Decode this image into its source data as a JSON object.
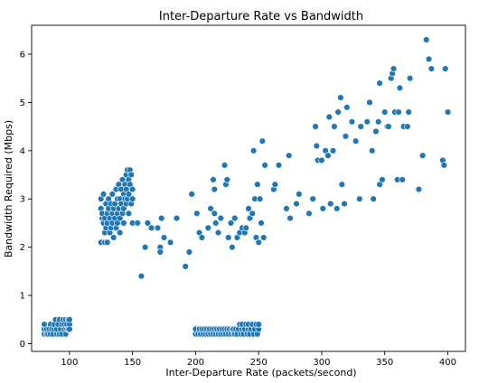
{
  "chart_data": {
    "type": "scatter",
    "title": "Inter-Departure Rate vs Bandwidth",
    "xlabel": "Inter-Departure Rate (packets/second)",
    "ylabel": "Bandwidth Required (Mbps)",
    "xlim": [
      70,
      414
    ],
    "ylim": [
      -0.16,
      6.6
    ],
    "xticks": [
      100,
      150,
      200,
      250,
      300,
      350,
      400
    ],
    "yticks": [
      0,
      1,
      2,
      3,
      4,
      5,
      6
    ],
    "grid": false,
    "legend": "none",
    "marker_color": "#1f77b4",
    "series": [
      {
        "points": [
          [
            80,
            0.2
          ],
          [
            80,
            0.3
          ],
          [
            80,
            0.4
          ],
          [
            82,
            0.2
          ],
          [
            82,
            0.3
          ],
          [
            83,
            0.2
          ],
          [
            84,
            0.3
          ],
          [
            85,
            0.2
          ],
          [
            85,
            0.4
          ],
          [
            86,
            0.3
          ],
          [
            87,
            0.2
          ],
          [
            88,
            0.3
          ],
          [
            88,
            0.4
          ],
          [
            89,
            0.5
          ],
          [
            90,
            0.2
          ],
          [
            90,
            0.3
          ],
          [
            91,
            0.4
          ],
          [
            92,
            0.2
          ],
          [
            92,
            0.5
          ],
          [
            93,
            0.3
          ],
          [
            94,
            0.4
          ],
          [
            94,
            0.2
          ],
          [
            95,
            0.5
          ],
          [
            96,
            0.3
          ],
          [
            96,
            0.4
          ],
          [
            97,
            0.2
          ],
          [
            97,
            0.5
          ],
          [
            98,
            0.3
          ],
          [
            98,
            0.4
          ],
          [
            99,
            0.3
          ],
          [
            99,
            0.5
          ],
          [
            100,
            0.4
          ],
          [
            100,
            0.3
          ],
          [
            100,
            0.5
          ],
          [
            125,
            2.1
          ],
          [
            125,
            2.8
          ],
          [
            125,
            3.0
          ],
          [
            126,
            2.6
          ],
          [
            126,
            2.7
          ],
          [
            127,
            2.5
          ],
          [
            127,
            3.1
          ],
          [
            128,
            2.1
          ],
          [
            128,
            2.3
          ],
          [
            128,
            2.6
          ],
          [
            129,
            2.4
          ],
          [
            129,
            2.9
          ],
          [
            130,
            2.5
          ],
          [
            130,
            2.7
          ],
          [
            130,
            2.1
          ],
          [
            131,
            2.8
          ],
          [
            131,
            3.0
          ],
          [
            132,
            2.6
          ],
          [
            132,
            2.3
          ],
          [
            133,
            2.4
          ],
          [
            133,
            2.9
          ],
          [
            134,
            2.5
          ],
          [
            134,
            2.7
          ],
          [
            134,
            3.1
          ],
          [
            135,
            2.2
          ],
          [
            135,
            2.8
          ],
          [
            136,
            2.6
          ],
          [
            136,
            2.9
          ],
          [
            137,
            2.4
          ],
          [
            137,
            3.2
          ],
          [
            138,
            2.7
          ],
          [
            138,
            3.0
          ],
          [
            138,
            2.5
          ],
          [
            139,
            2.8
          ],
          [
            139,
            3.3
          ],
          [
            140,
            2.6
          ],
          [
            140,
            3.0
          ],
          [
            140,
            2.3
          ],
          [
            141,
            2.9
          ],
          [
            141,
            3.2
          ],
          [
            142,
            2.7
          ],
          [
            142,
            3.4
          ],
          [
            143,
            2.8
          ],
          [
            143,
            3.1
          ],
          [
            143,
            2.5
          ],
          [
            144,
            3.0
          ],
          [
            144,
            3.3
          ],
          [
            145,
            2.9
          ],
          [
            145,
            3.5
          ],
          [
            145,
            3.2
          ],
          [
            146,
            3.0
          ],
          [
            146,
            3.6
          ],
          [
            147,
            3.1
          ],
          [
            147,
            3.4
          ],
          [
            147,
            2.7
          ],
          [
            148,
            3.3
          ],
          [
            148,
            3.6
          ],
          [
            149,
            2.9
          ],
          [
            149,
            3.5
          ],
          [
            150,
            3.2
          ],
          [
            150,
            2.5
          ],
          [
            150,
            3.0
          ],
          [
            154,
            2.5
          ],
          [
            157,
            1.4
          ],
          [
            160,
            2.0
          ],
          [
            162,
            2.5
          ],
          [
            165,
            2.4
          ],
          [
            170,
            2.4
          ],
          [
            172,
            2.0
          ],
          [
            172,
            1.9
          ],
          [
            173,
            2.6
          ],
          [
            175,
            2.2
          ],
          [
            180,
            2.1
          ],
          [
            185,
            2.6
          ],
          [
            192,
            1.6
          ],
          [
            195,
            1.9
          ],
          [
            197,
            3.1
          ],
          [
            201,
            2.7
          ],
          [
            203,
            2.3
          ],
          [
            205,
            2.2
          ],
          [
            210,
            2.4
          ],
          [
            212,
            2.8
          ],
          [
            214,
            3.4
          ],
          [
            215,
            3.2
          ],
          [
            215,
            2.7
          ],
          [
            216,
            2.5
          ],
          [
            218,
            2.3
          ],
          [
            220,
            2.6
          ],
          [
            223,
            3.7
          ],
          [
            224,
            3.3
          ],
          [
            225,
            3.4
          ],
          [
            226,
            2.2
          ],
          [
            228,
            2.5
          ],
          [
            229,
            2.0
          ],
          [
            231,
            2.6
          ],
          [
            233,
            2.2
          ],
          [
            235,
            2.3
          ],
          [
            237,
            2.4
          ],
          [
            239,
            2.3
          ],
          [
            240,
            2.4
          ],
          [
            242,
            2.8
          ],
          [
            243,
            2.6
          ],
          [
            245,
            2.7
          ],
          [
            246,
            4.0
          ],
          [
            247,
            3.0
          ],
          [
            248,
            2.2
          ],
          [
            249,
            3.3
          ],
          [
            250,
            2.1
          ],
          [
            251,
            3.0
          ],
          [
            252,
            2.5
          ],
          [
            253,
            4.2
          ],
          [
            254,
            2.2
          ],
          [
            255,
            3.7
          ],
          [
            262,
            3.2
          ],
          [
            263,
            3.3
          ],
          [
            266,
            3.7
          ],
          [
            272,
            2.8
          ],
          [
            274,
            3.9
          ],
          [
            275,
            2.6
          ],
          [
            280,
            2.9
          ],
          [
            282,
            3.1
          ],
          [
            290,
            2.7
          ],
          [
            293,
            3.0
          ],
          [
            295,
            4.5
          ],
          [
            296,
            4.1
          ],
          [
            297,
            3.8
          ],
          [
            300,
            3.8
          ],
          [
            301,
            2.8
          ],
          [
            303,
            4.0
          ],
          [
            305,
            3.9
          ],
          [
            306,
            4.7
          ],
          [
            307,
            2.9
          ],
          [
            309,
            4.0
          ],
          [
            310,
            4.5
          ],
          [
            312,
            2.8
          ],
          [
            313,
            4.8
          ],
          [
            315,
            5.1
          ],
          [
            316,
            3.3
          ],
          [
            318,
            2.9
          ],
          [
            319,
            4.3
          ],
          [
            320,
            4.9
          ],
          [
            324,
            4.6
          ],
          [
            327,
            4.2
          ],
          [
            330,
            3.0
          ],
          [
            331,
            4.5
          ],
          [
            336,
            4.6
          ],
          [
            338,
            5.0
          ],
          [
            340,
            4.0
          ],
          [
            341,
            3.0
          ],
          [
            343,
            4.4
          ],
          [
            345,
            4.6
          ],
          [
            346,
            3.3
          ],
          [
            346,
            5.4
          ],
          [
            348,
            3.4
          ],
          [
            350,
            4.8
          ],
          [
            352,
            4.5
          ],
          [
            353,
            4.5
          ],
          [
            355,
            5.5
          ],
          [
            356,
            5.6
          ],
          [
            357,
            5.7
          ],
          [
            358,
            4.8
          ],
          [
            360,
            3.4
          ],
          [
            361,
            4.8
          ],
          [
            362,
            5.3
          ],
          [
            364,
            3.4
          ],
          [
            365,
            4.5
          ],
          [
            368,
            4.5
          ],
          [
            369,
            4.8
          ],
          [
            370,
            5.5
          ],
          [
            377,
            3.2
          ],
          [
            380,
            3.9
          ],
          [
            383,
            6.3
          ],
          [
            385,
            5.9
          ],
          [
            387,
            5.7
          ],
          [
            396,
            3.8
          ],
          [
            397,
            3.7
          ],
          [
            398,
            5.7
          ],
          [
            400,
            4.8
          ],
          [
            200,
            0.2
          ],
          [
            200,
            0.3
          ],
          [
            202,
            0.2
          ],
          [
            203,
            0.3
          ],
          [
            204,
            0.2
          ],
          [
            205,
            0.3
          ],
          [
            206,
            0.2
          ],
          [
            207,
            0.3
          ],
          [
            208,
            0.2
          ],
          [
            209,
            0.3
          ],
          [
            210,
            0.2
          ],
          [
            211,
            0.3
          ],
          [
            212,
            0.2
          ],
          [
            213,
            0.3
          ],
          [
            214,
            0.2
          ],
          [
            215,
            0.3
          ],
          [
            216,
            0.2
          ],
          [
            217,
            0.3
          ],
          [
            218,
            0.2
          ],
          [
            219,
            0.3
          ],
          [
            220,
            0.2
          ],
          [
            221,
            0.3
          ],
          [
            222,
            0.2
          ],
          [
            223,
            0.3
          ],
          [
            224,
            0.2
          ],
          [
            225,
            0.3
          ],
          [
            226,
            0.2
          ],
          [
            227,
            0.3
          ],
          [
            228,
            0.2
          ],
          [
            229,
            0.3
          ],
          [
            230,
            0.2
          ],
          [
            230,
            0.3
          ],
          [
            231,
            0.2
          ],
          [
            232,
            0.3
          ],
          [
            233,
            0.2
          ],
          [
            234,
            0.3
          ],
          [
            235,
            0.4
          ],
          [
            236,
            0.2
          ],
          [
            237,
            0.3
          ],
          [
            237,
            0.4
          ],
          [
            238,
            0.2
          ],
          [
            239,
            0.3
          ],
          [
            240,
            0.4
          ],
          [
            241,
            0.2
          ],
          [
            242,
            0.3
          ],
          [
            242,
            0.4
          ],
          [
            243,
            0.2
          ],
          [
            244,
            0.3
          ],
          [
            245,
            0.4
          ],
          [
            246,
            0.2
          ],
          [
            247,
            0.3
          ],
          [
            248,
            0.4
          ],
          [
            249,
            0.2
          ],
          [
            250,
            0.3
          ],
          [
            250,
            0.4
          ]
        ]
      }
    ]
  }
}
